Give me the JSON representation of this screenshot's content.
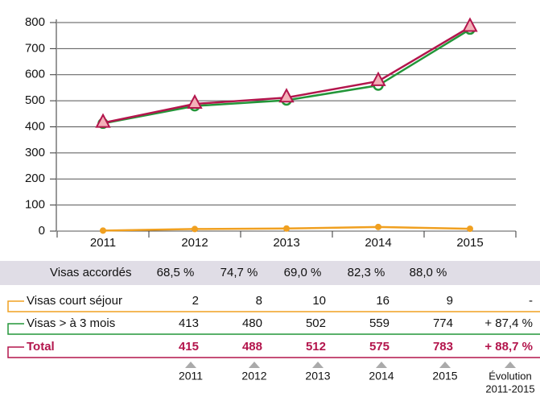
{
  "chart_data": {
    "type": "line",
    "categories": [
      "2011",
      "2012",
      "2013",
      "2014",
      "2015"
    ],
    "series": [
      {
        "name": "Visas court séjour",
        "color": "#f0a020",
        "marker": "dot",
        "values": [
          2,
          8,
          10,
          16,
          9
        ]
      },
      {
        "name": "Visas > à 3 mois",
        "color": "#239639",
        "marker": "circle",
        "values": [
          413,
          480,
          502,
          559,
          774
        ]
      },
      {
        "name": "Total",
        "color": "#b3154c",
        "marker": "triangle",
        "values": [
          415,
          488,
          512,
          575,
          783
        ]
      }
    ],
    "ylim": [
      0,
      800
    ],
    "yticks": [
      0,
      100,
      200,
      300,
      400,
      500,
      600,
      700,
      800
    ],
    "grid": true
  },
  "table": {
    "header_row": {
      "label": "Visas accordés",
      "values": [
        "68,5 %",
        "74,7 %",
        "69,0 %",
        "82,3 %",
        "88,0 %"
      ]
    },
    "evolution": [
      "-",
      "+ 87,4 %",
      "+ 88,7 %"
    ],
    "evolution_label": [
      "Évolution",
      "2011-2015"
    ]
  }
}
